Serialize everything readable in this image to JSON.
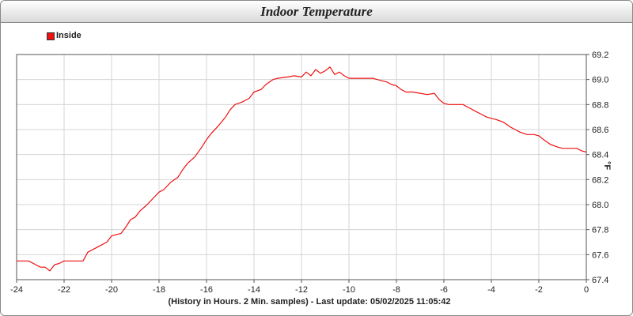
{
  "chart_data": {
    "type": "line",
    "title": "Indoor Temperature",
    "xlabel": "(History in Hours. 2 Min. samples) - Last update: 05/02/2025 11:05:42",
    "ylabel": "°F",
    "xlim": [
      -24,
      0
    ],
    "ylim": [
      67.4,
      69.2
    ],
    "x_ticks": [
      "-24",
      "-22",
      "-20",
      "-18",
      "-16",
      "-14",
      "-12",
      "-10",
      "-8",
      "-6",
      "-4",
      "-2",
      "0"
    ],
    "y_ticks": [
      "67.4",
      "67.6",
      "67.8",
      "68.0",
      "68.2",
      "68.4",
      "68.6",
      "68.8",
      "69.0",
      "69.2"
    ],
    "grid": true,
    "legend_position": "top-left",
    "series": [
      {
        "name": "Inside",
        "color": "#ee1111",
        "x": [
          -24,
          -23.5,
          -23.2,
          -23.0,
          -22.8,
          -22.6,
          -22.4,
          -22.2,
          -22.0,
          -21.5,
          -21.2,
          -21.0,
          -20.5,
          -20.2,
          -20.0,
          -19.6,
          -19.4,
          -19.2,
          -19.0,
          -18.8,
          -18.5,
          -18.2,
          -18.0,
          -17.8,
          -17.5,
          -17.2,
          -17.0,
          -16.8,
          -16.5,
          -16.2,
          -16.0,
          -15.8,
          -15.5,
          -15.2,
          -15.0,
          -14.8,
          -14.5,
          -14.2,
          -14.0,
          -13.7,
          -13.5,
          -13.2,
          -13.0,
          -12.6,
          -12.3,
          -12.0,
          -11.8,
          -11.6,
          -11.4,
          -11.2,
          -11.0,
          -10.8,
          -10.6,
          -10.4,
          -10.2,
          -10.0,
          -9.8,
          -9.5,
          -9.2,
          -9.0,
          -8.8,
          -8.6,
          -8.4,
          -8.2,
          -8.0,
          -7.8,
          -7.6,
          -7.3,
          -7.0,
          -6.7,
          -6.4,
          -6.2,
          -6.0,
          -5.8,
          -5.5,
          -5.2,
          -5.0,
          -4.7,
          -4.4,
          -4.2,
          -4.0,
          -3.8,
          -3.5,
          -3.2,
          -3.0,
          -2.8,
          -2.5,
          -2.2,
          -2.0,
          -1.8,
          -1.5,
          -1.2,
          -1.0,
          -0.7,
          -0.4,
          -0.2,
          0.0
        ],
        "values": [
          67.55,
          67.55,
          67.52,
          67.5,
          67.5,
          67.47,
          67.52,
          67.53,
          67.55,
          67.55,
          67.55,
          67.62,
          67.67,
          67.7,
          67.75,
          67.77,
          67.82,
          67.88,
          67.9,
          67.95,
          68.0,
          68.06,
          68.1,
          68.12,
          68.18,
          68.22,
          68.28,
          68.33,
          68.38,
          68.46,
          68.52,
          68.57,
          68.63,
          68.7,
          68.76,
          68.8,
          68.82,
          68.85,
          68.9,
          68.92,
          68.96,
          69.0,
          69.01,
          69.02,
          69.03,
          69.02,
          69.06,
          69.03,
          69.08,
          69.05,
          69.07,
          69.1,
          69.04,
          69.06,
          69.03,
          69.01,
          69.01,
          69.01,
          69.01,
          69.01,
          69.0,
          68.99,
          68.98,
          68.96,
          68.95,
          68.92,
          68.9,
          68.9,
          68.89,
          68.88,
          68.89,
          68.84,
          68.81,
          68.8,
          68.8,
          68.8,
          68.78,
          68.75,
          68.72,
          68.7,
          68.69,
          68.68,
          68.66,
          68.62,
          68.6,
          68.58,
          68.56,
          68.56,
          68.55,
          68.52,
          68.48,
          68.46,
          68.45,
          68.45,
          68.45,
          68.43,
          68.42
        ]
      }
    ]
  }
}
